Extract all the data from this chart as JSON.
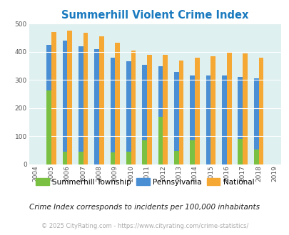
{
  "title": "Summerhill Violent Crime Index",
  "title_color": "#1a7abf",
  "years": [
    2004,
    2005,
    2006,
    2007,
    2008,
    2009,
    2010,
    2011,
    2012,
    2013,
    2014,
    2015,
    2016,
    2017,
    2018,
    2019
  ],
  "data_years": [
    2005,
    2006,
    2007,
    2008,
    2009,
    2010,
    2011,
    2012,
    2013,
    2014,
    2015,
    2016,
    2017,
    2018
  ],
  "summerhill": [
    263,
    45,
    45,
    0,
    43,
    45,
    85,
    168,
    48,
    87,
    0,
    0,
    90,
    52
  ],
  "pennsylvania": [
    424,
    440,
    418,
    408,
    380,
    367,
    354,
    348,
    329,
    315,
    315,
    315,
    311,
    305
  ],
  "national": [
    470,
    474,
    468,
    455,
    432,
    405,
    388,
    388,
    368,
    378,
    383,
    397,
    394,
    380
  ],
  "bar_width": 0.3,
  "colors": {
    "summerhill": "#7ac143",
    "pennsylvania": "#4a8fd4",
    "national": "#f5a833"
  },
  "bg_color": "#dff0f0",
  "ylim": [
    0,
    500
  ],
  "yticks": [
    0,
    100,
    200,
    300,
    400,
    500
  ],
  "legend_labels": [
    "Summerhill Township",
    "Pennsylvania",
    "National"
  ],
  "footnote1": "Crime Index corresponds to incidents per 100,000 inhabitants",
  "footnote2": "© 2025 CityRating.com - https://www.cityrating.com/crime-statistics/",
  "footnote1_color": "#222222",
  "footnote2_color": "#aaaaaa",
  "footnote2_url_color": "#4a8fd4"
}
